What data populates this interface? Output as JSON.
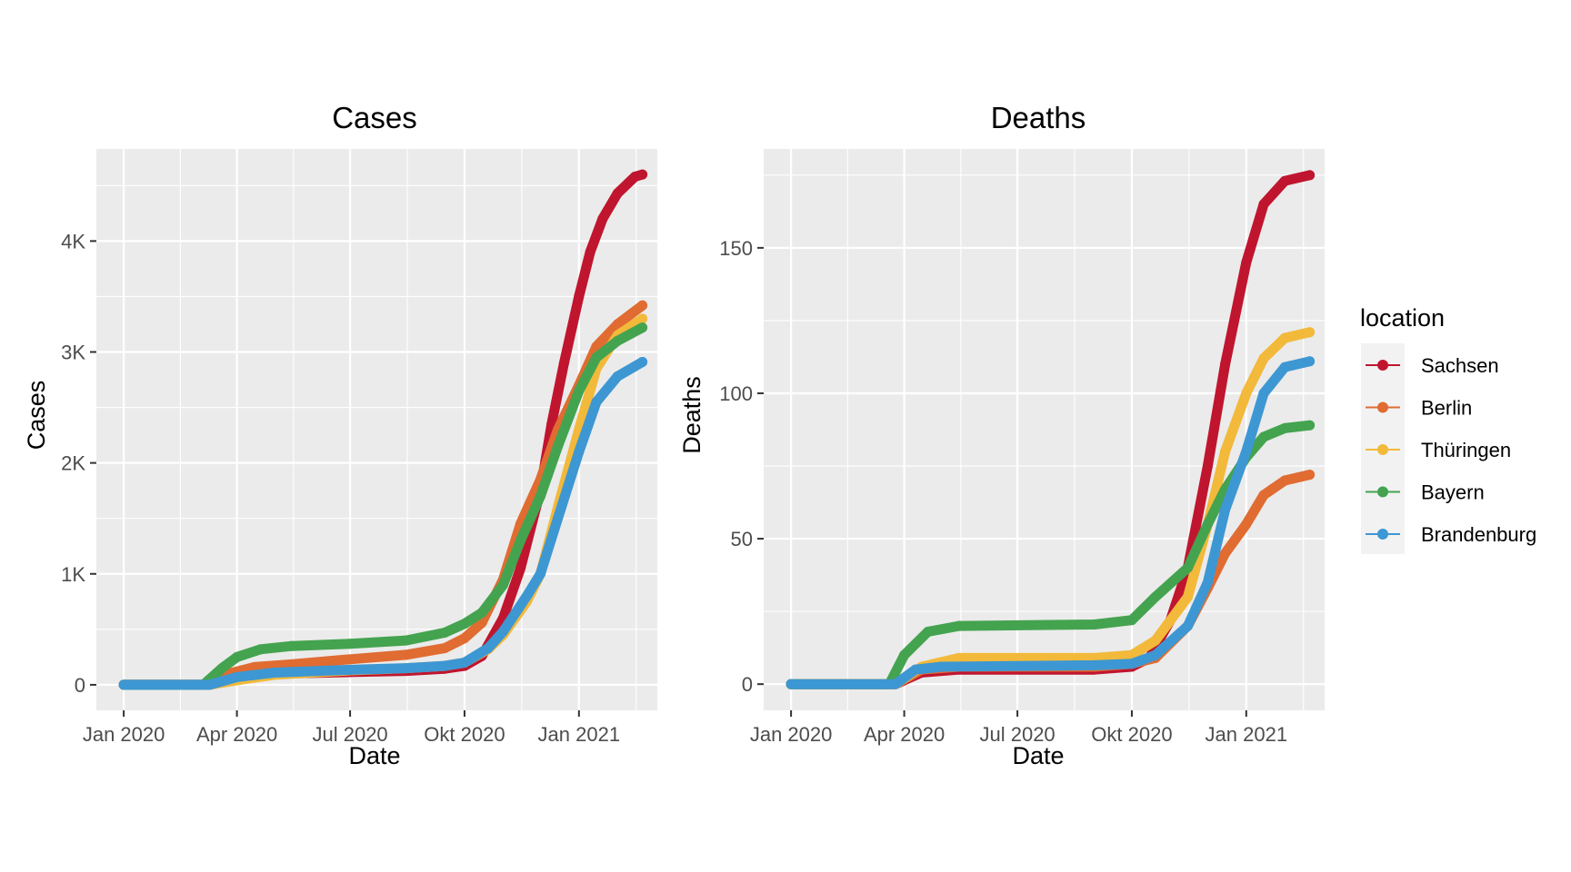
{
  "chart_data": [
    {
      "type": "line",
      "title": "Cases",
      "xlabel": "Date",
      "ylabel": "Cases",
      "x_ticks": [
        "Jan 2020",
        "Apr 2020",
        "Jul 2020",
        "Okt 2020",
        "Jan 2021"
      ],
      "x_tick_dates": [
        "2020-01-01",
        "2020-04-01",
        "2020-07-01",
        "2020-10-01",
        "2021-01-01"
      ],
      "xlim": [
        "2019-12-10",
        "2021-03-05"
      ],
      "y_ticks": [
        "0",
        "1K",
        "2K",
        "3K",
        "4K"
      ],
      "y_tick_values": [
        0,
        1000,
        2000,
        3000,
        4000
      ],
      "ylim": [
        -230,
        4830
      ],
      "grid": true,
      "series": [
        {
          "name": "Sachsen",
          "color": "#C0152F",
          "points": [
            [
              "2020-01-01",
              0
            ],
            [
              "2020-03-10",
              0
            ],
            [
              "2020-04-01",
              60
            ],
            [
              "2020-05-01",
              100
            ],
            [
              "2020-07-01",
              115
            ],
            [
              "2020-08-15",
              125
            ],
            [
              "2020-09-15",
              145
            ],
            [
              "2020-10-01",
              170
            ],
            [
              "2020-10-15",
              260
            ],
            [
              "2020-11-01",
              600
            ],
            [
              "2020-11-15",
              1050
            ],
            [
              "2020-12-01",
              1750
            ],
            [
              "2020-12-10",
              2350
            ],
            [
              "2020-12-20",
              2900
            ],
            [
              "2021-01-01",
              3500
            ],
            [
              "2021-01-10",
              3900
            ],
            [
              "2021-01-20",
              4200
            ],
            [
              "2021-02-01",
              4430
            ],
            [
              "2021-02-15",
              4580
            ],
            [
              "2021-02-21",
              4600
            ]
          ]
        },
        {
          "name": "Berlin",
          "color": "#E06C32",
          "points": [
            [
              "2020-01-01",
              0
            ],
            [
              "2020-03-05",
              0
            ],
            [
              "2020-03-25",
              100
            ],
            [
              "2020-04-15",
              160
            ],
            [
              "2020-05-15",
              185
            ],
            [
              "2020-07-01",
              230
            ],
            [
              "2020-08-15",
              270
            ],
            [
              "2020-09-15",
              330
            ],
            [
              "2020-10-01",
              420
            ],
            [
              "2020-10-15",
              560
            ],
            [
              "2020-11-01",
              950
            ],
            [
              "2020-11-15",
              1450
            ],
            [
              "2020-12-01",
              1850
            ],
            [
              "2020-12-15",
              2300
            ],
            [
              "2021-01-01",
              2700
            ],
            [
              "2021-01-15",
              3050
            ],
            [
              "2021-02-01",
              3250
            ],
            [
              "2021-02-21",
              3420
            ]
          ]
        },
        {
          "name": "Thüringen",
          "color": "#F2B93A",
          "points": [
            [
              "2020-01-01",
              0
            ],
            [
              "2020-03-10",
              0
            ],
            [
              "2020-04-01",
              40
            ],
            [
              "2020-05-01",
              90
            ],
            [
              "2020-07-01",
              130
            ],
            [
              "2020-08-15",
              150
            ],
            [
              "2020-09-15",
              170
            ],
            [
              "2020-10-01",
              200
            ],
            [
              "2020-10-20",
              320
            ],
            [
              "2020-11-01",
              450
            ],
            [
              "2020-11-20",
              750
            ],
            [
              "2020-12-01",
              1000
            ],
            [
              "2020-12-15",
              1600
            ],
            [
              "2021-01-01",
              2300
            ],
            [
              "2021-01-15",
              2850
            ],
            [
              "2021-02-01",
              3150
            ],
            [
              "2021-02-21",
              3300
            ]
          ]
        },
        {
          "name": "Bayern",
          "color": "#44A34F",
          "points": [
            [
              "2020-01-01",
              0
            ],
            [
              "2020-03-05",
              0
            ],
            [
              "2020-03-20",
              150
            ],
            [
              "2020-04-01",
              250
            ],
            [
              "2020-04-20",
              320
            ],
            [
              "2020-05-15",
              350
            ],
            [
              "2020-07-01",
              370
            ],
            [
              "2020-08-15",
              400
            ],
            [
              "2020-09-15",
              470
            ],
            [
              "2020-10-01",
              550
            ],
            [
              "2020-10-15",
              650
            ],
            [
              "2020-11-01",
              900
            ],
            [
              "2020-11-15",
              1300
            ],
            [
              "2020-12-01",
              1700
            ],
            [
              "2020-12-15",
              2150
            ],
            [
              "2021-01-01",
              2650
            ],
            [
              "2021-01-15",
              2950
            ],
            [
              "2021-02-01",
              3100
            ],
            [
              "2021-02-21",
              3220
            ]
          ]
        },
        {
          "name": "Brandenburg",
          "color": "#3D97D3",
          "points": [
            [
              "2020-01-01",
              0
            ],
            [
              "2020-03-10",
              0
            ],
            [
              "2020-04-01",
              70
            ],
            [
              "2020-05-01",
              110
            ],
            [
              "2020-07-01",
              135
            ],
            [
              "2020-08-15",
              150
            ],
            [
              "2020-09-15",
              170
            ],
            [
              "2020-10-01",
              200
            ],
            [
              "2020-10-20",
              330
            ],
            [
              "2020-11-01",
              480
            ],
            [
              "2020-11-20",
              800
            ],
            [
              "2020-12-01",
              1000
            ],
            [
              "2020-12-15",
              1500
            ],
            [
              "2021-01-01",
              2100
            ],
            [
              "2021-01-15",
              2550
            ],
            [
              "2021-02-01",
              2780
            ],
            [
              "2021-02-21",
              2910
            ]
          ]
        }
      ]
    },
    {
      "type": "line",
      "title": "Deaths",
      "xlabel": "Date",
      "ylabel": "Deaths",
      "x_ticks": [
        "Jan 2020",
        "Apr 2020",
        "Jul 2020",
        "Okt 2020",
        "Jan 2021"
      ],
      "x_tick_dates": [
        "2020-01-01",
        "2020-04-01",
        "2020-07-01",
        "2020-10-01",
        "2021-01-01"
      ],
      "xlim": [
        "2019-12-10",
        "2021-03-05"
      ],
      "y_ticks": [
        "0",
        "50",
        "100",
        "150"
      ],
      "y_tick_values": [
        0,
        50,
        100,
        150
      ],
      "ylim": [
        -9,
        184
      ],
      "grid": true,
      "series": [
        {
          "name": "Sachsen",
          "color": "#C0152F",
          "points": [
            [
              "2020-01-01",
              0
            ],
            [
              "2020-03-25",
              0
            ],
            [
              "2020-04-15",
              4
            ],
            [
              "2020-05-15",
              5
            ],
            [
              "2020-09-01",
              5
            ],
            [
              "2020-10-01",
              6
            ],
            [
              "2020-10-15",
              9
            ],
            [
              "2020-11-01",
              22
            ],
            [
              "2020-11-15",
              40
            ],
            [
              "2020-12-01",
              75
            ],
            [
              "2020-12-15",
              110
            ],
            [
              "2021-01-01",
              145
            ],
            [
              "2021-01-15",
              165
            ],
            [
              "2021-02-01",
              173
            ],
            [
              "2021-02-21",
              175
            ]
          ]
        },
        {
          "name": "Berlin",
          "color": "#E06C32",
          "points": [
            [
              "2020-01-01",
              0
            ],
            [
              "2020-03-25",
              0
            ],
            [
              "2020-04-15",
              5
            ],
            [
              "2020-05-15",
              6
            ],
            [
              "2020-09-01",
              6
            ],
            [
              "2020-10-01",
              7
            ],
            [
              "2020-10-20",
              9
            ],
            [
              "2020-11-15",
              20
            ],
            [
              "2020-12-01",
              33
            ],
            [
              "2020-12-15",
              45
            ],
            [
              "2021-01-01",
              55
            ],
            [
              "2021-01-15",
              65
            ],
            [
              "2021-02-01",
              70
            ],
            [
              "2021-02-21",
              72
            ]
          ]
        },
        {
          "name": "Thüringen",
          "color": "#F2B93A",
          "points": [
            [
              "2020-01-01",
              0
            ],
            [
              "2020-03-25",
              0
            ],
            [
              "2020-04-15",
              6
            ],
            [
              "2020-05-15",
              9
            ],
            [
              "2020-09-01",
              9
            ],
            [
              "2020-10-01",
              10
            ],
            [
              "2020-10-20",
              15
            ],
            [
              "2020-11-15",
              30
            ],
            [
              "2020-12-01",
              55
            ],
            [
              "2020-12-15",
              80
            ],
            [
              "2021-01-01",
              100
            ],
            [
              "2021-01-15",
              112
            ],
            [
              "2021-02-01",
              119
            ],
            [
              "2021-02-21",
              121
            ]
          ]
        },
        {
          "name": "Bayern",
          "color": "#44A34F",
          "points": [
            [
              "2020-01-01",
              0
            ],
            [
              "2020-03-20",
              0
            ],
            [
              "2020-04-01",
              10
            ],
            [
              "2020-04-20",
              18
            ],
            [
              "2020-05-15",
              20
            ],
            [
              "2020-09-01",
              20.5
            ],
            [
              "2020-10-01",
              22
            ],
            [
              "2020-10-20",
              30
            ],
            [
              "2020-11-15",
              40
            ],
            [
              "2020-12-01",
              55
            ],
            [
              "2020-12-15",
              67
            ],
            [
              "2021-01-01",
              78
            ],
            [
              "2021-01-15",
              85
            ],
            [
              "2021-02-01",
              88
            ],
            [
              "2021-02-21",
              89
            ]
          ]
        },
        {
          "name": "Brandenburg",
          "color": "#3D97D3",
          "points": [
            [
              "2020-01-01",
              0
            ],
            [
              "2020-03-25",
              0
            ],
            [
              "2020-04-10",
              5
            ],
            [
              "2020-05-01",
              6
            ],
            [
              "2020-09-01",
              6.5
            ],
            [
              "2020-10-01",
              7
            ],
            [
              "2020-10-20",
              10
            ],
            [
              "2020-11-15",
              20
            ],
            [
              "2020-12-01",
              35
            ],
            [
              "2020-12-15",
              60
            ],
            [
              "2021-01-01",
              80
            ],
            [
              "2021-01-15",
              100
            ],
            [
              "2021-02-01",
              109
            ],
            [
              "2021-02-21",
              111
            ]
          ]
        }
      ]
    }
  ],
  "legend": {
    "title": "location",
    "placement": "right",
    "items": [
      {
        "label": "Sachsen",
        "color": "#C0152F"
      },
      {
        "label": "Berlin",
        "color": "#E06C32"
      },
      {
        "label": "Thüringen",
        "color": "#F2B93A"
      },
      {
        "label": "Bayern",
        "color": "#44A34F"
      },
      {
        "label": "Brandenburg",
        "color": "#3D97D3"
      }
    ]
  },
  "style": {
    "panel_background": "#EBEBEB",
    "grid_color": "#FFFFFF",
    "tick_color": "#333333"
  }
}
